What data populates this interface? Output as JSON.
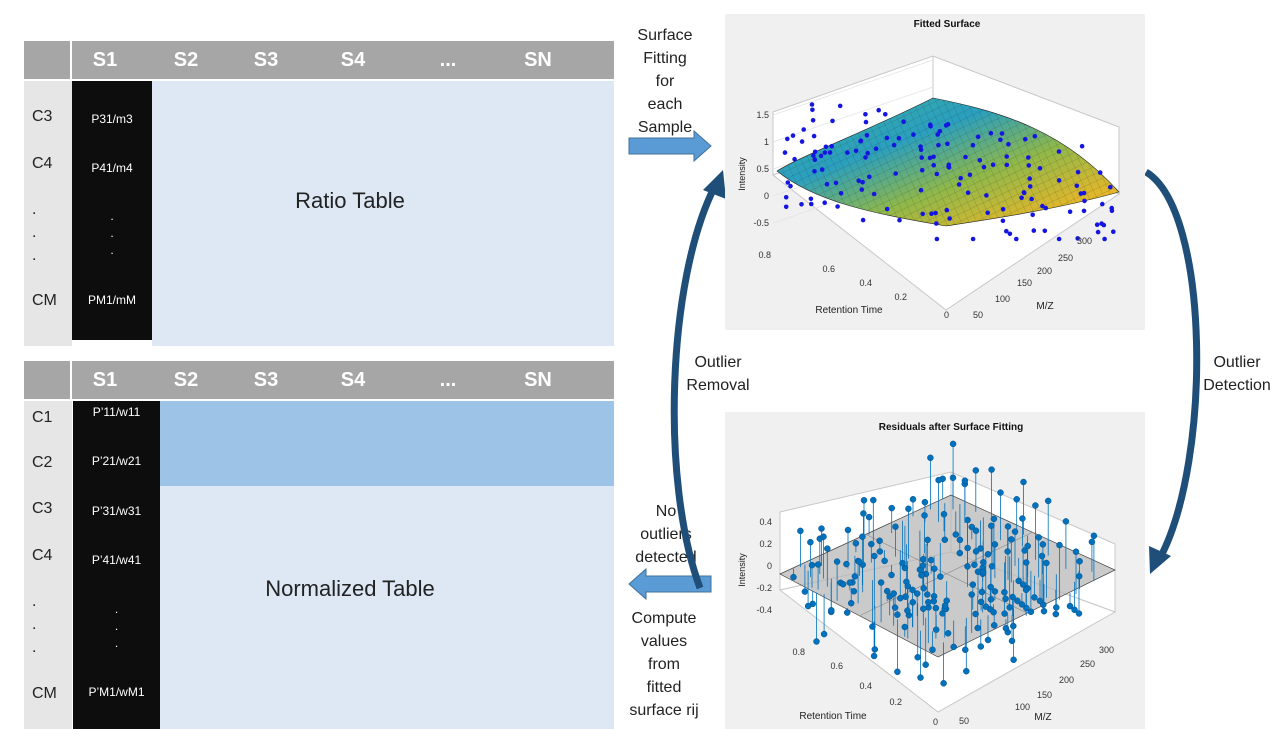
{
  "ratio_table": {
    "columns": [
      "S1",
      "S2",
      "S3",
      "S4",
      "...",
      "SN"
    ],
    "rows": [
      "C3",
      "C4",
      ".",
      ".",
      ".",
      "CM"
    ],
    "cells": [
      "P31/m3",
      "P41/m4",
      ".",
      ".",
      ".",
      "PM1/mM"
    ],
    "title": "Ratio Table"
  },
  "normalized_table": {
    "columns": [
      "S1",
      "S2",
      "S3",
      "S4",
      "...",
      "SN"
    ],
    "rows": [
      "C1",
      "C2",
      "C3",
      "C4",
      ".",
      ".",
      ".",
      "CM"
    ],
    "cells": [
      "P’11/w11",
      "P’21/w21",
      "P’31/w31",
      "P’41/w41",
      ".",
      ".",
      ".",
      "P’M1/wM1"
    ],
    "title": "Normalized Table"
  },
  "labels": {
    "surface_fitting": [
      "Surface",
      "Fitting",
      "for",
      "each",
      "Sample"
    ],
    "outlier_removal": [
      "Outlier",
      "Removal"
    ],
    "outlier_detection": [
      "Outlier",
      "Detection"
    ],
    "no_outliers": [
      "No",
      "outliers",
      "detected"
    ],
    "compute_values": [
      "Compute",
      "values",
      "from",
      "fitted",
      "surface rij"
    ]
  },
  "fitted_plot": {
    "title": "Fitted Surface",
    "zlabel": "Intensity",
    "xlabel": "Retention Time",
    "ylabel": "M/Z",
    "z_ticks": [
      "1.5",
      "1",
      "0.5",
      "0",
      "-0.5"
    ],
    "x_ticks": [
      "0.8",
      "0.6",
      "0.4",
      "0.2",
      "0"
    ],
    "y_ticks": [
      "300",
      "250",
      "200",
      "150",
      "100",
      "50"
    ]
  },
  "residual_plot": {
    "title": "Residuals after Surface Fitting",
    "zlabel": "Intensity",
    "xlabel": "Retention Time",
    "ylabel": "M/Z",
    "z_ticks": [
      "0.4",
      "0.2",
      "0",
      "-0.2",
      "-0.4"
    ],
    "x_ticks": [
      "0.8",
      "0.6",
      "0.4",
      "0.2",
      "0"
    ],
    "y_ticks": [
      "300",
      "250",
      "200",
      "150",
      "100",
      "50"
    ]
  },
  "colors": {
    "header_gray": "#a6a6a6",
    "row_gray": "#e6e6e6",
    "light_blue": "#dde8f4",
    "band_blue": "#9dc3e6",
    "arrow_blue": "#5b9bd5",
    "curve_navy": "#1f4e79",
    "point_blue": "#1515e0",
    "stem_blue": "#0072bd"
  }
}
